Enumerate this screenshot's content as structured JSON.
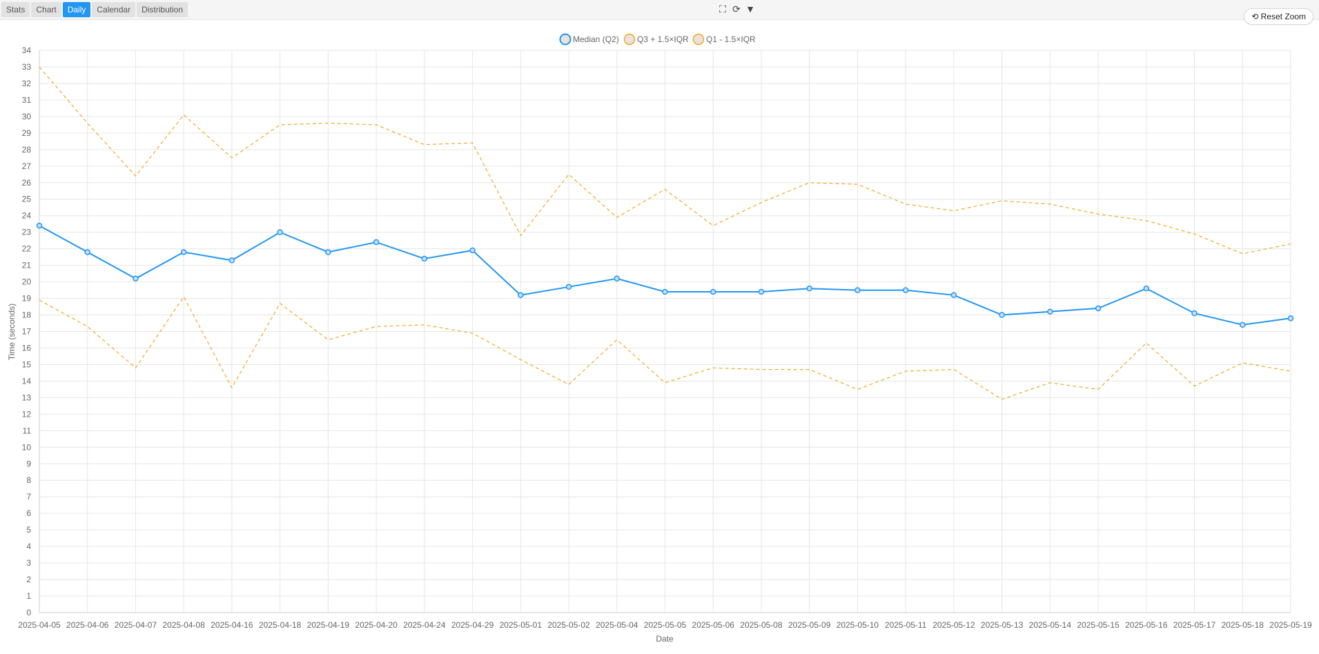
{
  "toolbar": {
    "tabs": [
      {
        "label": "Stats"
      },
      {
        "label": "Chart"
      },
      {
        "label": "Daily",
        "active": true
      },
      {
        "label": "Calendar"
      },
      {
        "label": "Distribution"
      }
    ],
    "tools": {
      "fullscreen": "⛶",
      "refresh": "⟳",
      "menu": "▼"
    },
    "reset_zoom_label": "⟲ Reset Zoom"
  },
  "colors": {
    "median": "#2196f3",
    "bounds": "#f5a623",
    "grid": "#e6e6e6"
  },
  "chart_data": {
    "type": "line",
    "xlabel": "Date",
    "ylabel": "Time (seconds)",
    "ylim": [
      0,
      34
    ],
    "grid": true,
    "legend_position": "top-center",
    "categories": [
      "2025-04-05",
      "2025-04-06",
      "2025-04-07",
      "2025-04-08",
      "2025-04-16",
      "2025-04-18",
      "2025-04-19",
      "2025-04-20",
      "2025-04-24",
      "2025-04-29",
      "2025-05-01",
      "2025-05-02",
      "2025-05-04",
      "2025-05-05",
      "2025-05-06",
      "2025-05-08",
      "2025-05-09",
      "2025-05-10",
      "2025-05-11",
      "2025-05-12",
      "2025-05-13",
      "2025-05-14",
      "2025-05-15",
      "2025-05-16",
      "2025-05-17",
      "2025-05-18",
      "2025-05-19"
    ],
    "series": [
      {
        "name": "Median (Q2)",
        "style": "solid",
        "markers": true,
        "values": [
          23.4,
          21.8,
          20.2,
          21.8,
          21.3,
          23.0,
          21.8,
          22.4,
          21.4,
          21.9,
          19.2,
          19.7,
          20.2,
          19.4,
          19.4,
          19.4,
          19.6,
          19.5,
          19.5,
          19.2,
          18.0,
          18.2,
          18.4,
          19.6,
          18.1,
          17.4,
          17.8
        ]
      },
      {
        "name": "Q3 + 1.5×IQR",
        "style": "dashed",
        "markers": false,
        "values": [
          33.0,
          29.6,
          26.4,
          30.1,
          27.5,
          29.5,
          29.6,
          29.5,
          28.3,
          28.4,
          22.8,
          26.5,
          23.9,
          25.6,
          23.4,
          24.8,
          26.0,
          25.9,
          24.7,
          24.3,
          24.9,
          24.7,
          24.1,
          23.7,
          22.9,
          21.7,
          22.3
        ]
      },
      {
        "name": "Q1 - 1.5×IQR",
        "style": "dashed",
        "markers": false,
        "values": [
          18.9,
          17.3,
          14.8,
          19.1,
          13.6,
          18.7,
          16.5,
          17.3,
          17.4,
          16.9,
          15.3,
          13.8,
          16.5,
          13.9,
          14.8,
          14.7,
          14.7,
          13.5,
          14.6,
          14.7,
          12.9,
          13.9,
          13.5,
          16.3,
          13.7,
          15.1,
          14.6
        ]
      }
    ]
  }
}
